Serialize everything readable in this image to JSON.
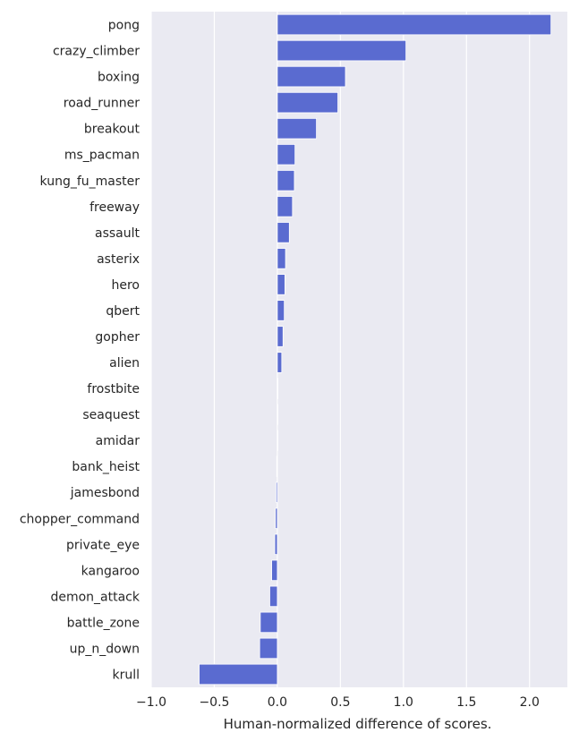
{
  "chart_data": {
    "type": "bar",
    "orientation": "horizontal",
    "categories": [
      "pong",
      "crazy_climber",
      "boxing",
      "road_runner",
      "breakout",
      "ms_pacman",
      "kung_fu_master",
      "freeway",
      "assault",
      "asterix",
      "hero",
      "qbert",
      "gopher",
      "alien",
      "frostbite",
      "seaquest",
      "amidar",
      "bank_heist",
      "jamesbond",
      "chopper_command",
      "private_eye",
      "kangaroo",
      "demon_attack",
      "battle_zone",
      "up_n_down",
      "krull"
    ],
    "values": [
      2.17,
      1.02,
      0.54,
      0.48,
      0.31,
      0.14,
      0.135,
      0.12,
      0.095,
      0.065,
      0.06,
      0.055,
      0.045,
      0.035,
      0.005,
      0.003,
      0.002,
      -0.005,
      -0.01,
      -0.015,
      -0.02,
      -0.045,
      -0.06,
      -0.135,
      -0.14,
      -0.62
    ],
    "xlabel": "Human-normalized difference of scores.",
    "ylabel": "",
    "xlim": [
      -1.0,
      2.3
    ],
    "xticks": [
      -1.0,
      -0.5,
      0.0,
      0.5,
      1.0,
      1.5,
      2.0
    ],
    "xtick_labels": [
      "−1.0",
      "−0.5",
      "0.0",
      "0.5",
      "1.0",
      "1.5",
      "2.0"
    ],
    "grid": true,
    "colors": {
      "bar": "#5a6bd0",
      "background": "#eaeaf2",
      "grid": "#ffffff"
    }
  }
}
